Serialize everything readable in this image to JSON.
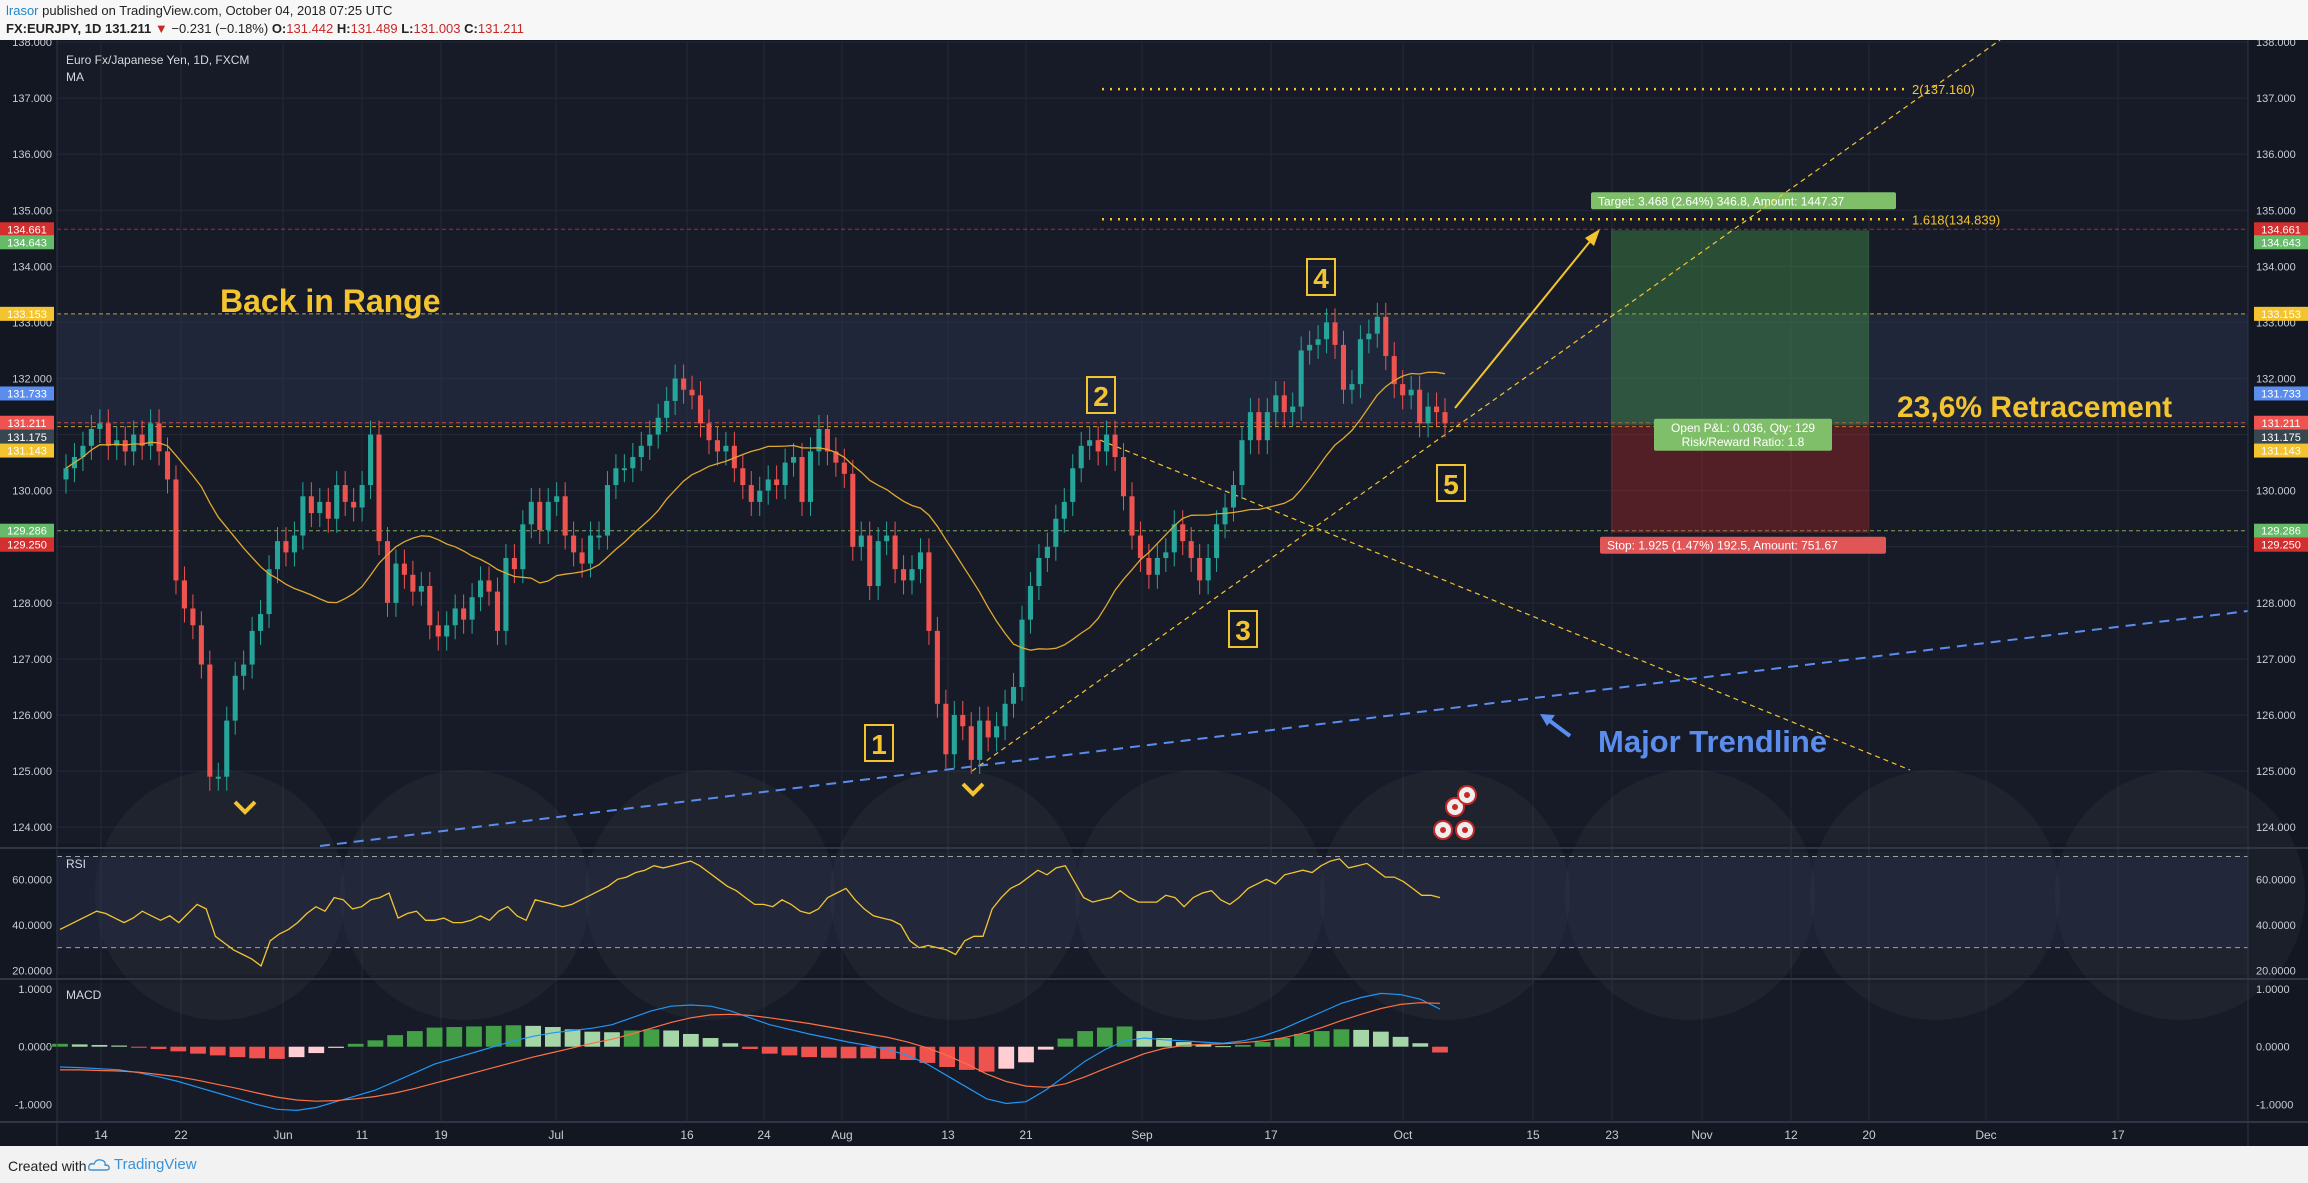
{
  "header": {
    "author": "lrasor",
    "published_text": " published on TradingView.com, October 04, 2018 07:25 UTC",
    "symbol_line_prefix": "FX:EURJPY, 1D  131.211 ",
    "change_arrow": "▼",
    "change_text": " −0.231 (−0.18%) ",
    "ohlc": {
      "O": "131.442",
      "H": "131.489",
      "L": "131.003",
      "C": "131.211"
    }
  },
  "footer": {
    "created_with": "Created with",
    "brand": "TradingView"
  },
  "colors": {
    "background": "#131722",
    "up": "#26a69a",
    "down": "#ef5350",
    "ma": "#e0a82e",
    "annotation": "#f4c430",
    "trendline": "#5b8def",
    "target": "#4caf50",
    "stop": "#c62828"
  },
  "chart_data": [
    {
      "type": "candlestick",
      "title": "Euro Fx/Japanese Yen, 1D, FXCM",
      "indicator": "MA",
      "x_tick_labels": [
        "14",
        "22",
        "Jun",
        "11",
        "19",
        "Jul",
        "16",
        "24",
        "Aug",
        "13",
        "21",
        "Sep",
        "17",
        "Oct",
        "15",
        "23",
        "Nov",
        "12",
        "20",
        "Dec",
        "17"
      ],
      "y_tick_labels": [
        "124.000",
        "125.000",
        "126.000",
        "127.000",
        "128.000",
        "129.000",
        "130.000",
        "131.000",
        "132.000",
        "133.000",
        "134.000",
        "135.000",
        "136.000",
        "137.000",
        "138.000"
      ],
      "ylim": [
        123.7,
        138.0
      ],
      "ohlc_close_approx": [
        130.4,
        130.6,
        130.8,
        131.1,
        131.2,
        130.8,
        130.9,
        130.7,
        131.0,
        130.8,
        131.2,
        130.7,
        130.2,
        128.4,
        127.9,
        127.6,
        126.9,
        124.9,
        124.9,
        125.9,
        126.7,
        126.9,
        127.5,
        127.8,
        128.6,
        129.1,
        128.9,
        129.2,
        129.9,
        129.6,
        129.8,
        129.5,
        130.1,
        129.8,
        129.7,
        130.1,
        131.0,
        129.1,
        128.0,
        128.7,
        128.5,
        128.2,
        128.3,
        127.6,
        127.4,
        127.6,
        127.9,
        127.7,
        128.1,
        128.4,
        128.2,
        127.5,
        128.8,
        128.6,
        129.4,
        129.8,
        129.3,
        129.8,
        129.9,
        129.2,
        128.9,
        128.7,
        129.2,
        129.2,
        130.1,
        130.4,
        130.4,
        130.6,
        130.8,
        131.0,
        131.3,
        131.6,
        132.0,
        131.8,
        131.7,
        131.2,
        130.9,
        130.7,
        130.8,
        130.4,
        130.1,
        129.8,
        130.0,
        130.2,
        130.1,
        130.5,
        130.6,
        129.8,
        130.7,
        131.1,
        130.7,
        130.5,
        130.3,
        129.0,
        129.2,
        128.3,
        129.1,
        129.2,
        128.6,
        128.4,
        128.6,
        128.9,
        127.5,
        126.2,
        125.3,
        126.0,
        125.8,
        125.2,
        125.9,
        125.6,
        125.8,
        126.2,
        126.5,
        127.7,
        128.3,
        128.8,
        129.0,
        129.5,
        129.8,
        130.4,
        130.8,
        130.9,
        130.7,
        131.0,
        130.6,
        129.9,
        129.2,
        128.8,
        128.5,
        128.8,
        128.9,
        129.4,
        129.1,
        128.8,
        128.4,
        128.8,
        129.4,
        129.7,
        130.1,
        130.9,
        131.4,
        130.9,
        131.4,
        131.7,
        131.4,
        131.5,
        132.5,
        132.6,
        132.7,
        133.0,
        132.6,
        131.8,
        131.9,
        132.7,
        132.8,
        133.1,
        132.4,
        131.9,
        131.7,
        131.8,
        131.2,
        131.5,
        131.4,
        131.2
      ],
      "series": [
        {
          "name": "MA"
        }
      ],
      "horizontal_levels": [
        {
          "label": "134.661",
          "value": 134.661,
          "color": "#d32f2f"
        },
        {
          "label": "134.643",
          "value": 134.643,
          "color": "#66bb6a"
        },
        {
          "label": "133.153",
          "value": 133.153,
          "color": "#f4c430"
        },
        {
          "label": "131.733",
          "value": 131.733,
          "color": "#5b8def"
        },
        {
          "label": "131.211",
          "value": 131.211,
          "color": "#ef5350"
        },
        {
          "label": "131.175",
          "value": 131.175,
          "color": "#37474f"
        },
        {
          "label": "131.143",
          "value": 131.143,
          "color": "#f4c430"
        },
        {
          "label": "129.286",
          "value": 129.286,
          "color": "#66bb6a"
        },
        {
          "label": "129.250",
          "value": 129.25,
          "color": "#d32f2f"
        }
      ],
      "fib_levels": [
        {
          "label": "2(137.160)",
          "value": 137.16
        },
        {
          "label": "1.618(134.839)",
          "value": 134.839
        }
      ],
      "position": {
        "target_text": "Target: 3.468 (2.64%) 346.8, Amount: 1447.37",
        "stop_text": "Stop: 1.925 (1.47%) 192.5, Amount: 751.67",
        "pnl_text": "Open P&L: 0.036, Qty: 129",
        "rr_text": "Risk/Reward Ratio: 1.8",
        "entry": 131.175,
        "target": 134.643,
        "stop": 129.25
      },
      "annotations": {
        "range_label": "Back in Range",
        "retracement_label": "23,6% Retracement",
        "trendline_label": "Major Trendline",
        "wave_labels": [
          "1",
          "2",
          "3",
          "4",
          "5"
        ]
      }
    },
    {
      "type": "line",
      "title": "RSI",
      "y_tick_labels": [
        "20.0000",
        "40.0000",
        "60.0000"
      ],
      "ylim": [
        18,
        72
      ],
      "bands": [
        70,
        30
      ],
      "values": [
        38,
        40,
        42,
        44,
        46,
        45,
        43,
        41,
        43,
        46,
        44,
        42,
        44,
        41,
        45,
        49,
        47,
        35,
        32,
        29,
        27,
        25,
        22,
        33,
        36,
        38,
        41,
        45,
        48,
        46,
        52,
        51,
        47,
        48,
        51,
        52,
        54,
        43,
        45,
        46,
        42,
        42,
        43,
        41,
        41,
        42,
        44,
        42,
        46,
        48,
        44,
        42,
        51,
        50,
        49,
        48,
        49,
        51,
        53,
        55,
        57,
        60,
        61,
        63,
        64,
        66,
        65,
        66,
        67,
        68,
        66,
        63,
        60,
        57,
        55,
        52,
        49,
        49,
        48,
        51,
        49,
        46,
        45,
        47,
        52,
        54,
        56,
        51,
        47,
        44,
        43,
        42,
        40,
        33,
        30,
        31,
        30,
        29,
        27,
        33,
        35,
        35,
        47,
        52,
        56,
        58,
        61,
        64,
        62,
        65,
        66,
        59,
        52,
        50,
        51,
        52,
        55,
        52,
        50,
        50,
        50,
        53,
        52,
        48,
        52,
        54,
        55,
        51,
        49,
        52,
        56,
        58,
        60,
        58,
        62,
        63,
        64,
        63,
        66,
        68,
        69,
        65,
        66,
        67,
        64,
        61,
        61,
        59,
        56,
        53,
        53,
        52
      ]
    },
    {
      "type": "bar",
      "title": "MACD",
      "y_tick_labels": [
        "-1.0000",
        "0.0000",
        "1.0000"
      ],
      "ylim": [
        -1.3,
        1.1
      ],
      "series": [
        {
          "values": [
            -0.35,
            -0.36,
            -0.38,
            -0.4,
            -0.45,
            -0.52,
            -0.6,
            -0.7,
            -0.8,
            -0.9,
            -1.0,
            -1.08,
            -1.1,
            -1.05,
            -0.95,
            -0.85,
            -0.75,
            -0.6,
            -0.45,
            -0.3,
            -0.2,
            -0.1,
            0.0,
            0.1,
            0.18,
            0.24,
            0.28,
            0.32,
            0.38,
            0.5,
            0.62,
            0.7,
            0.72,
            0.7,
            0.62,
            0.5,
            0.38,
            0.3,
            0.22,
            0.15,
            0.08,
            0.02,
            -0.05,
            -0.15,
            -0.3,
            -0.5,
            -0.7,
            -0.9,
            -0.98,
            -0.95,
            -0.75,
            -0.5,
            -0.25,
            -0.05,
            0.1,
            0.15,
            0.12,
            0.1,
            0.08,
            0.06,
            0.1,
            0.18,
            0.3,
            0.45,
            0.6,
            0.75,
            0.85,
            0.92,
            0.9,
            0.82,
            0.65
          ]
        },
        {
          "values": [
            -0.4,
            -0.4,
            -0.41,
            -0.42,
            -0.44,
            -0.48,
            -0.52,
            -0.58,
            -0.65,
            -0.72,
            -0.8,
            -0.87,
            -0.92,
            -0.94,
            -0.93,
            -0.9,
            -0.86,
            -0.8,
            -0.72,
            -0.63,
            -0.54,
            -0.45,
            -0.36,
            -0.27,
            -0.18,
            -0.1,
            -0.02,
            0.06,
            0.13,
            0.22,
            0.32,
            0.42,
            0.5,
            0.55,
            0.56,
            0.54,
            0.5,
            0.45,
            0.4,
            0.34,
            0.28,
            0.22,
            0.16,
            0.08,
            -0.02,
            -0.15,
            -0.3,
            -0.47,
            -0.6,
            -0.68,
            -0.7,
            -0.64,
            -0.52,
            -0.38,
            -0.25,
            -0.12,
            -0.03,
            0.02,
            0.04,
            0.05,
            0.07,
            0.1,
            0.15,
            0.23,
            0.33,
            0.45,
            0.56,
            0.66,
            0.73,
            0.76,
            0.75
          ]
        },
        {
          "values": [
            0.05,
            0.04,
            0.03,
            0.02,
            -0.01,
            -0.04,
            -0.08,
            -0.12,
            -0.15,
            -0.18,
            -0.2,
            -0.21,
            -0.18,
            -0.11,
            -0.02,
            0.05,
            0.11,
            0.2,
            0.27,
            0.33,
            0.34,
            0.35,
            0.36,
            0.37,
            0.36,
            0.34,
            0.3,
            0.26,
            0.25,
            0.28,
            0.3,
            0.28,
            0.22,
            0.15,
            0.06,
            -0.04,
            -0.12,
            -0.15,
            -0.18,
            -0.19,
            -0.2,
            -0.2,
            -0.21,
            -0.23,
            -0.28,
            -0.35,
            -0.4,
            -0.43,
            -0.38,
            -0.27,
            -0.05,
            0.14,
            0.27,
            0.33,
            0.35,
            0.27,
            0.15,
            0.08,
            0.04,
            0.01,
            0.03,
            0.08,
            0.15,
            0.22,
            0.27,
            0.3,
            0.29,
            0.26,
            0.17,
            0.06,
            -0.1
          ]
        }
      ]
    }
  ]
}
